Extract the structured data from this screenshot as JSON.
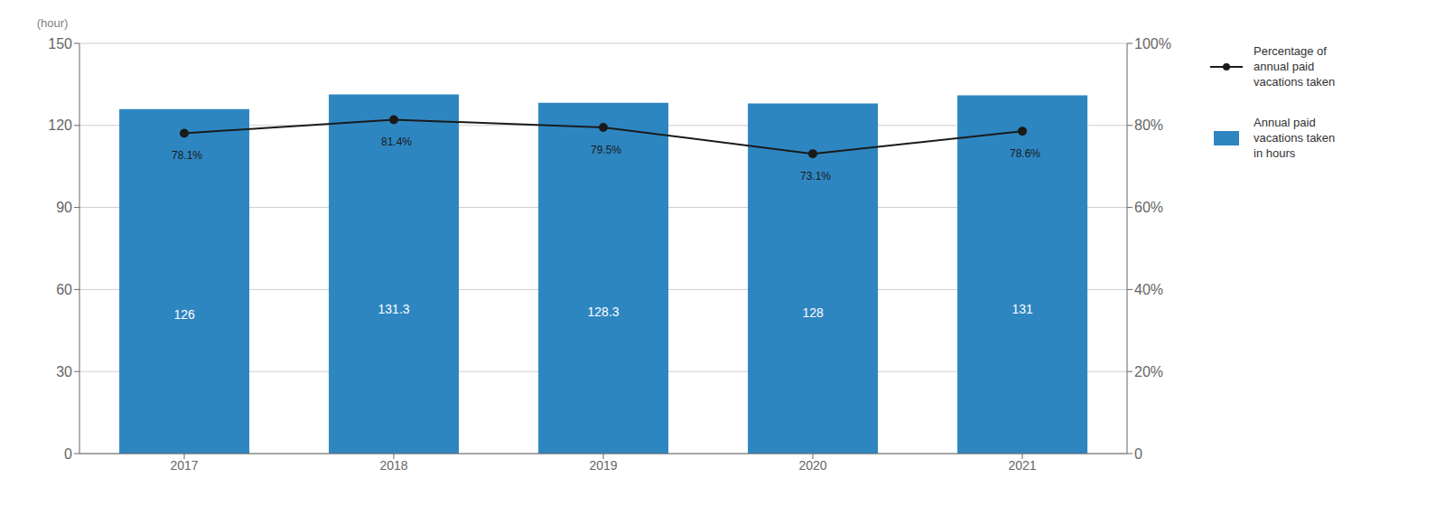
{
  "chart_data": {
    "type": "bar",
    "categories": [
      "2017",
      "2018",
      "2019",
      "2020",
      "2021"
    ],
    "series": [
      {
        "name": "Percentage of\nannual paid\nvacations taken",
        "type": "line",
        "color": "#1a1a1a",
        "marker": "circle",
        "axis": "y2",
        "values": [
          78.1,
          81.4,
          79.5,
          73.1,
          78.6
        ],
        "value_labels": [
          "78.1%",
          "81.4%",
          "79.5%",
          "73.1%",
          "78.6%"
        ]
      },
      {
        "name": "Annual paid\nvacations taken\nin hours",
        "type": "bar",
        "color": "#2e86c1",
        "values": [
          126,
          131.3,
          128.3,
          128,
          131
        ]
      }
    ],
    "ylabel": "(hour)",
    "ylim": [
      0,
      150
    ],
    "yticks": [
      0,
      30,
      60,
      90,
      120,
      150
    ],
    "y2lim": [
      0,
      100
    ],
    "y2ticks": [
      0,
      {
        "value": 20,
        "label": "20%"
      },
      {
        "value": 40,
        "label": "40%"
      },
      {
        "value": 60,
        "label": "60%"
      },
      {
        "value": 80,
        "label": "80%"
      },
      {
        "value": 100,
        "label": "100%"
      }
    ],
    "grid": true,
    "data_labels": true,
    "legend": "right"
  }
}
